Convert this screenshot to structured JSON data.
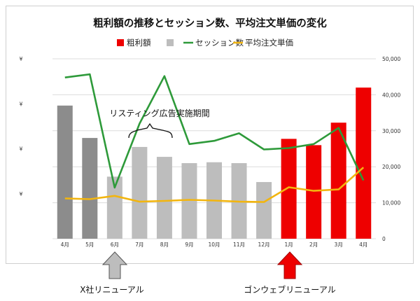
{
  "chart_data": {
    "type": "bar",
    "title": "粗利額の推移とセッション数、平均注文単価の変化",
    "categories": [
      "4月",
      "5月",
      "6月",
      "7月",
      "8月",
      "9月",
      "10月",
      "11月",
      "12月",
      "1月",
      "2月",
      "3月",
      "4月"
    ],
    "series": [
      {
        "name": "粗利額",
        "type": "bar",
        "values": [
          148,
          112,
          69,
          102,
          91,
          84,
          85,
          84,
          63,
          111,
          104,
          129,
          168
        ],
        "colors": [
          "#8c8c8c",
          "#8c8c8c",
          "#bdbdbd",
          "#bdbdbd",
          "#bdbdbd",
          "#bdbdbd",
          "#bdbdbd",
          "#bdbdbd",
          "#bdbdbd",
          "#ee0000",
          "#ee0000",
          "#ee0000",
          "#ee0000"
        ]
      },
      {
        "name": "セッション数",
        "type": "line",
        "axis": "right",
        "color": "#2e9a3a",
        "values": [
          44800,
          45700,
          14200,
          32000,
          45200,
          26300,
          27200,
          29300,
          24800,
          25200,
          26300,
          30800,
          16200
        ]
      },
      {
        "name": "平均注文単価",
        "type": "line",
        "axis": "right",
        "color": "#f2b50f",
        "values": [
          11200,
          11000,
          11900,
          10300,
          10500,
          10800,
          10600,
          10300,
          10200,
          14300,
          13300,
          13700,
          19800
        ]
      }
    ],
    "left_axis": {
      "tick_labels": [
        "¥",
        "¥",
        "¥",
        "¥"
      ],
      "ylim": [
        0,
        200
      ]
    },
    "right_axis": {
      "tick_labels": [
        "0",
        "10,000",
        "20,000",
        "30,000",
        "40,000",
        "50,000"
      ],
      "ylim": [
        0,
        50000
      ]
    },
    "legend": "top",
    "grid": true
  },
  "annotations": {
    "listing_period": "リスティング広告実施期間",
    "x_renewal": "X社リニューアル",
    "gonwe_renewal": "ゴンウェブリニューアル"
  },
  "colors": {
    "gray_arrow": "#bdbdbd",
    "red_arrow": "#ee0000"
  }
}
